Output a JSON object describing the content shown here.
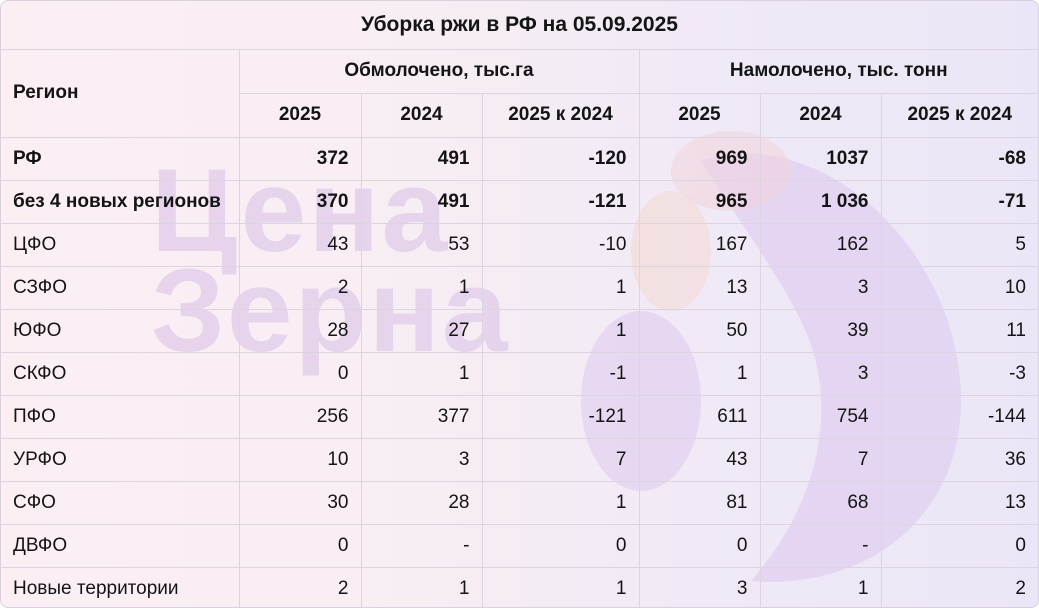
{
  "title": "Уборка ржи в РФ на 05.09.2025",
  "watermark": [
    "Цена",
    "Зерна"
  ],
  "header": {
    "region_label": "Регион",
    "groups": [
      "Обмолочено, тыс.га",
      "Намолочено, тыс. тонн"
    ],
    "subheaders": [
      "2025",
      "2024",
      "2025 к 2024",
      "2025",
      "2024",
      "2025 к 2024"
    ]
  },
  "rows": [
    {
      "region": "РФ",
      "bold": true,
      "values": [
        "372",
        "491",
        "-120",
        "969",
        "1037",
        "-68"
      ]
    },
    {
      "region": "без 4 новых регионов",
      "bold": true,
      "values": [
        "370",
        "491",
        "-121",
        "965",
        "1 036",
        "-71"
      ]
    },
    {
      "region": "ЦФО",
      "bold": false,
      "values": [
        "43",
        "53",
        "-10",
        "167",
        "162",
        "5"
      ]
    },
    {
      "region": "СЗФО",
      "bold": false,
      "values": [
        "2",
        "1",
        "1",
        "13",
        "3",
        "10"
      ]
    },
    {
      "region": "ЮФО",
      "bold": false,
      "values": [
        "28",
        "27",
        "1",
        "50",
        "39",
        "11"
      ]
    },
    {
      "region": "СКФО",
      "bold": false,
      "values": [
        "0",
        "1",
        "-1",
        "1",
        "3",
        "-3"
      ]
    },
    {
      "region": "ПФО",
      "bold": false,
      "values": [
        "256",
        "377",
        "-121",
        "611",
        "754",
        "-144"
      ]
    },
    {
      "region": "УРФО",
      "bold": false,
      "values": [
        "10",
        "3",
        "7",
        "43",
        "7",
        "36"
      ]
    },
    {
      "region": "СФО",
      "bold": false,
      "values": [
        "30",
        "28",
        "1",
        "81",
        "68",
        "13"
      ]
    },
    {
      "region": "ДВФО",
      "bold": false,
      "values": [
        "0",
        "-",
        "0",
        "0",
        "-",
        "0"
      ]
    },
    {
      "region": "Новые территории",
      "bold": false,
      "values": [
        "2",
        "1",
        "1",
        "3",
        "1",
        "2"
      ]
    }
  ]
}
